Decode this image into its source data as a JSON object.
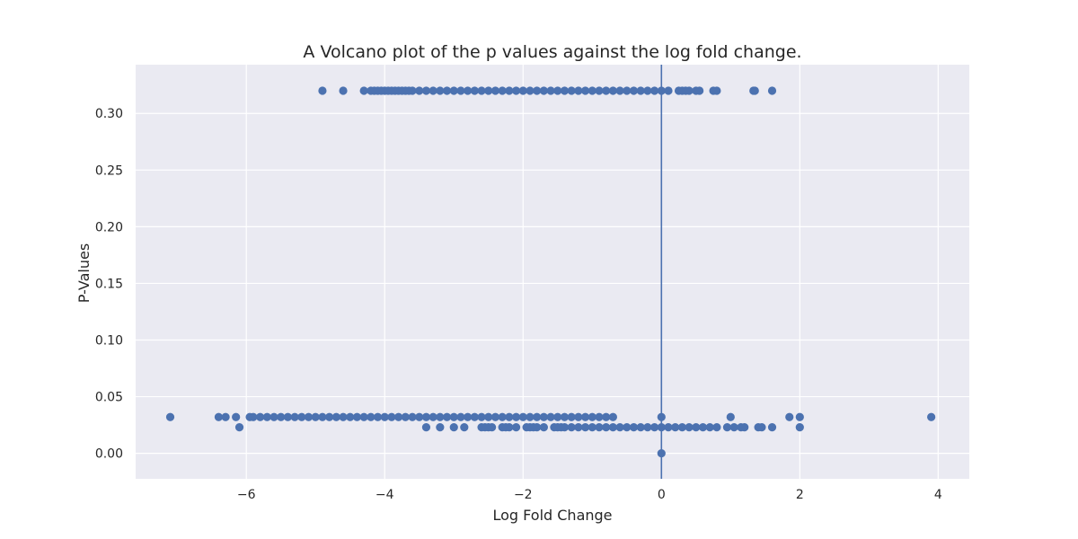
{
  "chart_data": {
    "type": "scatter",
    "title": "A Volcano plot of the p values against the log fold change.",
    "xlabel": "Log Fold Change",
    "ylabel": "P-Values",
    "xlim": [
      -7.6,
      4.45
    ],
    "ylim": [
      -0.0225,
      0.343
    ],
    "xticks": [
      -6,
      -4,
      -2,
      0,
      2,
      4
    ],
    "xtick_labels": [
      "−6",
      "−4",
      "−2",
      "0",
      "2",
      "4"
    ],
    "yticks": [
      0.0,
      0.05,
      0.1,
      0.15,
      0.2,
      0.25,
      0.3
    ],
    "ytick_labels": [
      "0.00",
      "0.05",
      "0.10",
      "0.15",
      "0.20",
      "0.25",
      "0.30"
    ],
    "grid": true,
    "vline_x": 0,
    "colors": {
      "background": "#eaeaf2",
      "grid": "#ffffff",
      "marker": "#4c72b0",
      "text": "#262626"
    },
    "series": [
      {
        "points": [
          [
            -4.9,
            0.32
          ],
          [
            -4.6,
            0.32
          ],
          [
            -4.3,
            0.32
          ],
          [
            -4.2,
            0.32
          ],
          [
            -4.15,
            0.32
          ],
          [
            -4.1,
            0.32
          ],
          [
            -4.05,
            0.32
          ],
          [
            -4.0,
            0.32
          ],
          [
            -3.95,
            0.32
          ],
          [
            -3.9,
            0.32
          ],
          [
            -3.85,
            0.32
          ],
          [
            -3.8,
            0.32
          ],
          [
            -3.75,
            0.32
          ],
          [
            -3.7,
            0.32
          ],
          [
            -3.65,
            0.32
          ],
          [
            -3.6,
            0.32
          ],
          [
            -3.5,
            0.32
          ],
          [
            -3.4,
            0.32
          ],
          [
            -3.3,
            0.32
          ],
          [
            -3.2,
            0.32
          ],
          [
            -3.1,
            0.32
          ],
          [
            -3.0,
            0.32
          ],
          [
            -2.9,
            0.32
          ],
          [
            -2.8,
            0.32
          ],
          [
            -2.7,
            0.32
          ],
          [
            -2.6,
            0.32
          ],
          [
            -2.5,
            0.32
          ],
          [
            -2.4,
            0.32
          ],
          [
            -2.3,
            0.32
          ],
          [
            -2.2,
            0.32
          ],
          [
            -2.1,
            0.32
          ],
          [
            -2.0,
            0.32
          ],
          [
            -1.9,
            0.32
          ],
          [
            -1.8,
            0.32
          ],
          [
            -1.7,
            0.32
          ],
          [
            -1.6,
            0.32
          ],
          [
            -1.5,
            0.32
          ],
          [
            -1.4,
            0.32
          ],
          [
            -1.3,
            0.32
          ],
          [
            -1.2,
            0.32
          ],
          [
            -1.1,
            0.32
          ],
          [
            -1.0,
            0.32
          ],
          [
            -0.9,
            0.32
          ],
          [
            -0.8,
            0.32
          ],
          [
            -0.7,
            0.32
          ],
          [
            -0.6,
            0.32
          ],
          [
            -0.5,
            0.32
          ],
          [
            -0.4,
            0.32
          ],
          [
            -0.3,
            0.32
          ],
          [
            -0.2,
            0.32
          ],
          [
            -0.1,
            0.32
          ],
          [
            0.0,
            0.32
          ],
          [
            0.1,
            0.32
          ],
          [
            0.25,
            0.32
          ],
          [
            0.3,
            0.32
          ],
          [
            0.35,
            0.32
          ],
          [
            0.4,
            0.32
          ],
          [
            0.5,
            0.32
          ],
          [
            0.55,
            0.32
          ],
          [
            0.75,
            0.32
          ],
          [
            0.8,
            0.32
          ],
          [
            1.33,
            0.32
          ],
          [
            1.35,
            0.32
          ],
          [
            1.6,
            0.32
          ],
          [
            -7.1,
            0.032
          ],
          [
            -6.4,
            0.032
          ],
          [
            -6.3,
            0.032
          ],
          [
            -6.15,
            0.032
          ],
          [
            -5.95,
            0.032
          ],
          [
            -5.9,
            0.032
          ],
          [
            -5.8,
            0.032
          ],
          [
            -5.7,
            0.032
          ],
          [
            -5.6,
            0.032
          ],
          [
            -5.5,
            0.032
          ],
          [
            -5.4,
            0.032
          ],
          [
            -5.3,
            0.032
          ],
          [
            -5.2,
            0.032
          ],
          [
            -5.1,
            0.032
          ],
          [
            -5.0,
            0.032
          ],
          [
            -4.9,
            0.032
          ],
          [
            -4.8,
            0.032
          ],
          [
            -4.7,
            0.032
          ],
          [
            -4.6,
            0.032
          ],
          [
            -4.5,
            0.032
          ],
          [
            -4.4,
            0.032
          ],
          [
            -4.3,
            0.032
          ],
          [
            -4.2,
            0.032
          ],
          [
            -4.1,
            0.032
          ],
          [
            -4.0,
            0.032
          ],
          [
            -3.9,
            0.032
          ],
          [
            -3.8,
            0.032
          ],
          [
            -3.7,
            0.032
          ],
          [
            -3.6,
            0.032
          ],
          [
            -3.5,
            0.032
          ],
          [
            -3.4,
            0.032
          ],
          [
            -3.3,
            0.032
          ],
          [
            -3.2,
            0.032
          ],
          [
            -3.1,
            0.032
          ],
          [
            -3.0,
            0.032
          ],
          [
            -2.9,
            0.032
          ],
          [
            -2.8,
            0.032
          ],
          [
            -2.7,
            0.032
          ],
          [
            -2.6,
            0.032
          ],
          [
            -2.5,
            0.032
          ],
          [
            -2.4,
            0.032
          ],
          [
            -2.3,
            0.032
          ],
          [
            -2.2,
            0.032
          ],
          [
            -2.1,
            0.032
          ],
          [
            -2.0,
            0.032
          ],
          [
            -1.9,
            0.032
          ],
          [
            -1.8,
            0.032
          ],
          [
            -1.7,
            0.032
          ],
          [
            -1.6,
            0.032
          ],
          [
            -1.5,
            0.032
          ],
          [
            -1.4,
            0.032
          ],
          [
            -1.3,
            0.032
          ],
          [
            -1.2,
            0.032
          ],
          [
            -1.1,
            0.032
          ],
          [
            -1.0,
            0.032
          ],
          [
            -0.9,
            0.032
          ],
          [
            -0.8,
            0.032
          ],
          [
            -0.7,
            0.032
          ],
          [
            0.0,
            0.032
          ],
          [
            1.0,
            0.032
          ],
          [
            1.85,
            0.032
          ],
          [
            2.0,
            0.032
          ],
          [
            3.9,
            0.032
          ],
          [
            -6.1,
            0.023
          ],
          [
            -3.4,
            0.023
          ],
          [
            -3.2,
            0.023
          ],
          [
            -3.0,
            0.023
          ],
          [
            -2.85,
            0.023
          ],
          [
            -2.6,
            0.023
          ],
          [
            -2.55,
            0.023
          ],
          [
            -2.5,
            0.023
          ],
          [
            -2.45,
            0.023
          ],
          [
            -2.3,
            0.023
          ],
          [
            -2.25,
            0.023
          ],
          [
            -2.2,
            0.023
          ],
          [
            -2.1,
            0.023
          ],
          [
            -1.95,
            0.023
          ],
          [
            -1.9,
            0.023
          ],
          [
            -1.85,
            0.023
          ],
          [
            -1.8,
            0.023
          ],
          [
            -1.7,
            0.023
          ],
          [
            -1.55,
            0.023
          ],
          [
            -1.5,
            0.023
          ],
          [
            -1.45,
            0.023
          ],
          [
            -1.4,
            0.023
          ],
          [
            -1.3,
            0.023
          ],
          [
            -1.2,
            0.023
          ],
          [
            -1.1,
            0.023
          ],
          [
            -1.0,
            0.023
          ],
          [
            -0.9,
            0.023
          ],
          [
            -0.8,
            0.023
          ],
          [
            -0.7,
            0.023
          ],
          [
            -0.6,
            0.023
          ],
          [
            -0.5,
            0.023
          ],
          [
            -0.4,
            0.023
          ],
          [
            -0.3,
            0.023
          ],
          [
            -0.2,
            0.023
          ],
          [
            -0.1,
            0.023
          ],
          [
            0.0,
            0.023
          ],
          [
            0.1,
            0.023
          ],
          [
            0.2,
            0.023
          ],
          [
            0.3,
            0.023
          ],
          [
            0.4,
            0.023
          ],
          [
            0.5,
            0.023
          ],
          [
            0.6,
            0.023
          ],
          [
            0.7,
            0.023
          ],
          [
            0.8,
            0.023
          ],
          [
            0.95,
            0.023
          ],
          [
            1.05,
            0.023
          ],
          [
            1.15,
            0.023
          ],
          [
            1.2,
            0.023
          ],
          [
            1.4,
            0.023
          ],
          [
            1.45,
            0.023
          ],
          [
            1.6,
            0.023
          ],
          [
            2.0,
            0.023
          ],
          [
            0.0,
            0.0
          ]
        ]
      }
    ]
  }
}
